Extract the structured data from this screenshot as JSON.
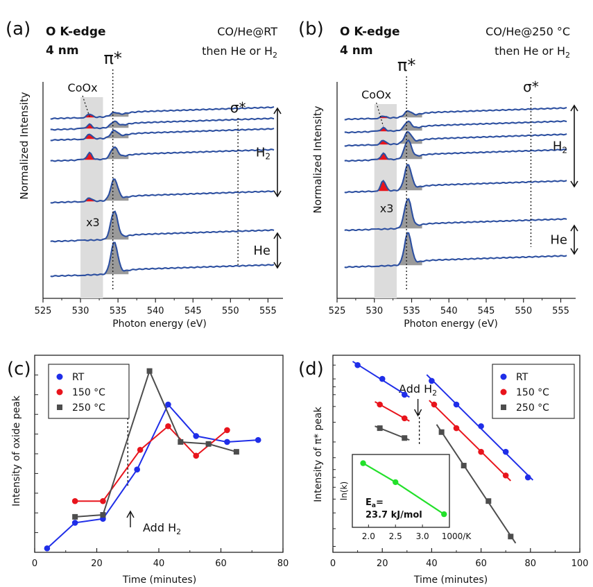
{
  "chart_data": [
    {
      "panel": "(a)",
      "type": "line",
      "title_line1": "O K-edge",
      "title_line2": "4 nm",
      "condition_line1": "CO/He@RT",
      "condition_line2_prefix": "then He or H",
      "condition_line2_sub": "2",
      "xlabel": "Photon energy (eV)",
      "ylabel": "Normalized Intensity",
      "xlim": [
        525,
        557
      ],
      "xticks": [
        "525",
        "530",
        "535",
        "540",
        "545",
        "550",
        "555"
      ],
      "annotations": {
        "oxide": "CoOx",
        "pi": "π*",
        "sigma": "σ*",
        "scale": "x3",
        "h2_prefix": "H",
        "h2_sub": "2",
        "he": "He"
      },
      "pi_peak_ev": 534.5,
      "sigma_ev": 551,
      "oxide_ev": 531.2,
      "shade_range": [
        530,
        533
      ],
      "spectra": [
        {
          "pi_height": 0.5,
          "oxide_height": 0.5
        },
        {
          "pi_height": 0.8,
          "oxide_height": 0.6
        },
        {
          "pi_height": 1.0,
          "oxide_height": 0.7
        },
        {
          "pi_height": 1.6,
          "oxide_height": 1.0
        },
        {
          "pi_height": 3.0,
          "oxide_height": 0.5
        },
        {
          "pi_height": 4.0,
          "oxide_height": 0.0
        },
        {
          "pi_height": 4.5,
          "oxide_height": 0.0
        }
      ]
    },
    {
      "panel": "(b)",
      "type": "line",
      "title_line1": "O K-edge",
      "title_line2": "4 nm",
      "condition_line1": "CO/He@250 °C",
      "condition_line2_prefix": "then He or H",
      "condition_line2_sub": "2",
      "xlabel": "Photon energy (eV)",
      "ylabel": "Normalized Intensity",
      "xlim": [
        525,
        557
      ],
      "xticks": [
        "525",
        "530",
        "535",
        "540",
        "545",
        "550",
        "555"
      ],
      "annotations": {
        "oxide": "CoOx",
        "pi": "π*",
        "sigma": "σ*",
        "scale": "x3",
        "h2_prefix": "H",
        "h2_sub": "2",
        "he": "He"
      },
      "pi_peak_ev": 534.5,
      "sigma_ev": 551,
      "oxide_ev": 531.2,
      "shade_range": [
        530,
        533
      ],
      "spectra": [
        {
          "pi_height": 0.8,
          "oxide_height": 0.3
        },
        {
          "pi_height": 1.2,
          "oxide_height": 0.5
        },
        {
          "pi_height": 1.6,
          "oxide_height": 0.6
        },
        {
          "pi_height": 2.6,
          "oxide_height": 0.9
        },
        {
          "pi_height": 3.6,
          "oxide_height": 1.5
        },
        {
          "pi_height": 4.2,
          "oxide_height": 0.0
        },
        {
          "pi_height": 4.6,
          "oxide_height": 0.0
        }
      ]
    },
    {
      "panel": "(c)",
      "type": "line",
      "xlabel": "Time (minutes)",
      "ylabel": "Intensity of oxide peak",
      "xlim": [
        0,
        80
      ],
      "ylim": [
        0,
        1
      ],
      "xticks": [
        "0",
        "20",
        "40",
        "60",
        "80"
      ],
      "legend_position": "top-left",
      "annotation_prefix": "Add H",
      "annotation_sub": "2",
      "add_h2_time": 30,
      "series": [
        {
          "name": "RT",
          "color": "#1f2ee8",
          "marker": "circle",
          "x": [
            4,
            13,
            22,
            33,
            43,
            52,
            62,
            72
          ],
          "y": [
            0.02,
            0.15,
            0.17,
            0.42,
            0.75,
            0.59,
            0.56,
            0.57
          ]
        },
        {
          "name": "150 °C",
          "color": "#e8141c",
          "marker": "circle",
          "x": [
            13,
            22,
            34,
            43,
            52,
            62
          ],
          "y": [
            0.26,
            0.26,
            0.52,
            0.64,
            0.49,
            0.62
          ]
        },
        {
          "name": "250 °C",
          "color": "#4d4d4d",
          "marker": "square",
          "x": [
            13,
            22,
            37,
            47,
            56,
            65
          ],
          "y": [
            0.18,
            0.19,
            0.92,
            0.56,
            0.55,
            0.51
          ]
        }
      ]
    },
    {
      "panel": "(d)",
      "type": "scatter",
      "xlabel": "Time (minutes)",
      "ylabel": "Intensity of π* peak",
      "xlim": [
        0,
        100
      ],
      "xticks": [
        "0",
        "20",
        "40",
        "60",
        "80",
        "100"
      ],
      "legend_position": "top-right",
      "annotation_prefix": "Add H",
      "annotation_sub": "2",
      "add_h2_time": 35,
      "series": [
        {
          "name": "RT",
          "color": "#1f2ee8",
          "marker": "circle",
          "x": [
            10,
            20,
            29,
            40,
            50,
            60,
            70,
            79
          ],
          "y": [
            0.95,
            0.88,
            0.8,
            0.87,
            0.75,
            0.64,
            0.51,
            0.38
          ]
        },
        {
          "name": "150 °C",
          "color": "#e8141c",
          "marker": "circle",
          "x": [
            19,
            29,
            41,
            50,
            60,
            70
          ],
          "y": [
            0.75,
            0.68,
            0.75,
            0.63,
            0.51,
            0.39
          ]
        },
        {
          "name": "250 °C",
          "color": "#4d4d4d",
          "marker": "square",
          "x": [
            19,
            29,
            44,
            53,
            63,
            72
          ],
          "y": [
            0.63,
            0.58,
            0.61,
            0.44,
            0.26,
            0.08
          ]
        }
      ],
      "inset": {
        "ylabel": "ln(k)",
        "xlabel": "1000/K",
        "xticks": [
          "2.0",
          "2.5",
          "3.0"
        ],
        "xlim": [
          1.7,
          3.5
        ],
        "color": "#22e02a",
        "x": [
          1.9,
          2.5,
          3.4
        ],
        "y": [
          0.88,
          0.62,
          0.18
        ],
        "label_prefix": "E",
        "label_sub": "a",
        "label_suffix": "=",
        "value": "23.7 kJ/mol"
      }
    }
  ]
}
